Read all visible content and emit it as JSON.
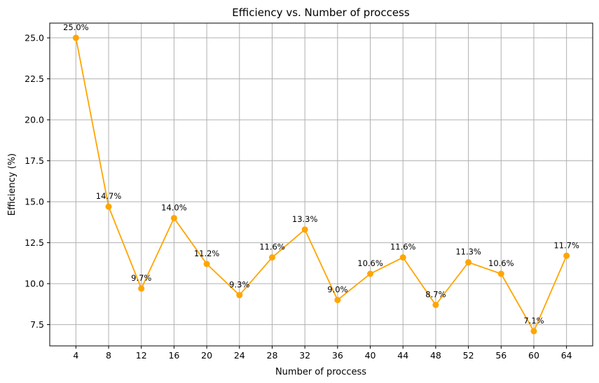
{
  "chart_data": {
    "type": "line",
    "title": "Efficiency vs. Number of proccess",
    "xlabel": "Number of proccess",
    "ylabel": "Efficiency (%)",
    "x": [
      4,
      8,
      12,
      16,
      20,
      24,
      28,
      32,
      36,
      40,
      44,
      48,
      52,
      56,
      60,
      64
    ],
    "series": [
      {
        "values": [
          25.0,
          14.7,
          9.7,
          14.0,
          11.2,
          9.3,
          11.6,
          13.3,
          9.0,
          10.6,
          11.6,
          8.7,
          11.3,
          10.6,
          7.1,
          11.7
        ],
        "color": "#ffa500",
        "marker": "circle"
      }
    ],
    "data_labels": [
      "25.0%",
      "14.7%",
      "9.7%",
      "14.0%",
      "11.2%",
      "9.3%",
      "11.6%",
      "13.3%",
      "9.0%",
      "10.6%",
      "11.6%",
      "8.7%",
      "11.3%",
      "10.6%",
      "7.1%",
      "11.7%"
    ],
    "xticks": [
      "4",
      "8",
      "12",
      "16",
      "20",
      "24",
      "28",
      "32",
      "36",
      "40",
      "44",
      "48",
      "52",
      "56",
      "60",
      "64"
    ],
    "yticks": [
      "7.5",
      "10.0",
      "12.5",
      "15.0",
      "17.5",
      "20.0",
      "22.5",
      "25.0"
    ],
    "ylim": [
      6.2,
      25.9
    ],
    "xlim": [
      0.8,
      67.2
    ],
    "grid": true
  }
}
